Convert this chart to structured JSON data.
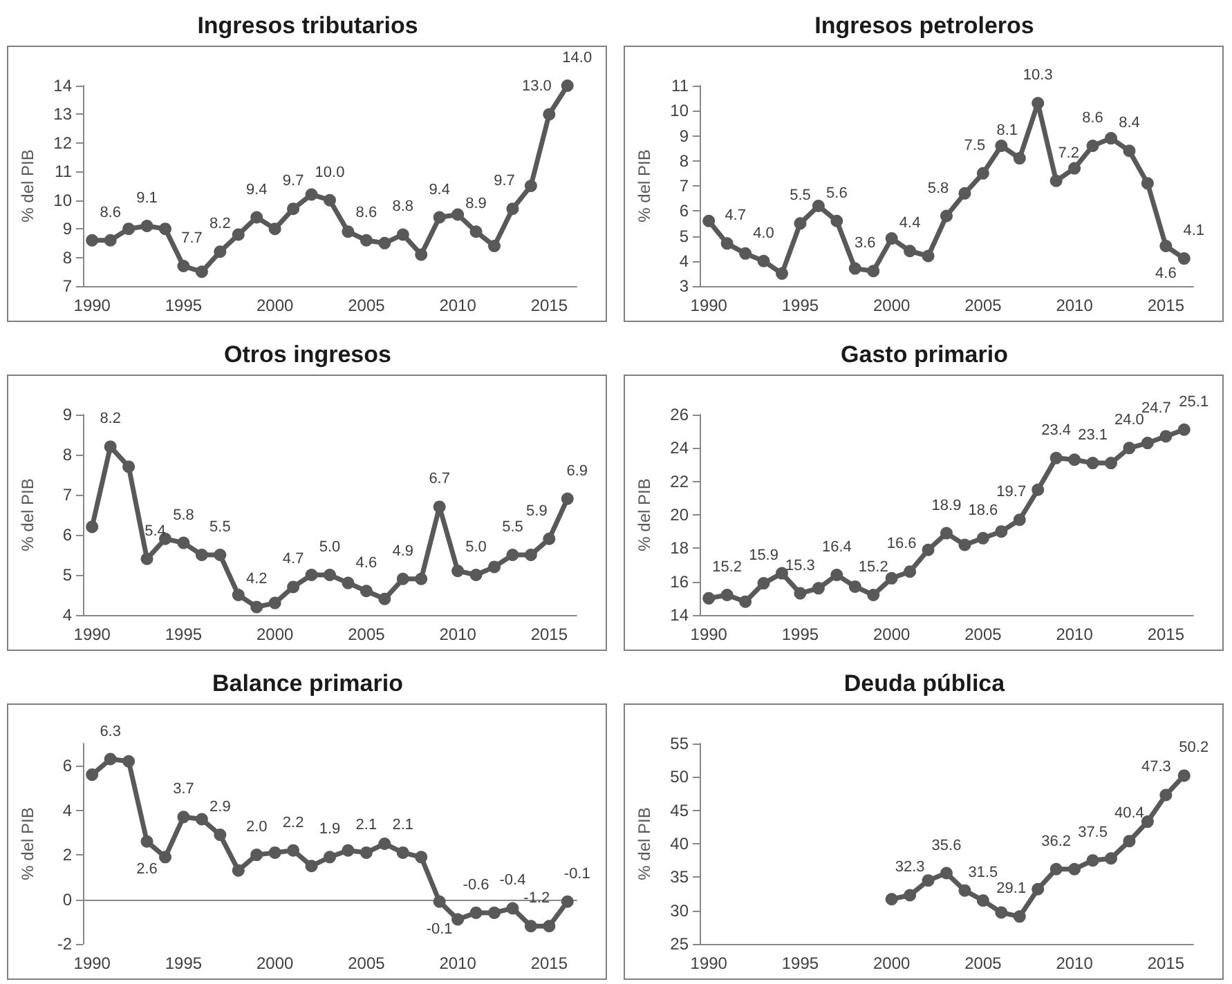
{
  "chart_data": [
    {
      "type": "line",
      "title": "Ingresos tributarios",
      "ylabel": "% del PIB",
      "categories": [
        "1990",
        null,
        null,
        null,
        null,
        "1995",
        null,
        null,
        null,
        null,
        "2000",
        null,
        null,
        null,
        null,
        "2005",
        null,
        null,
        null,
        null,
        "2010",
        null,
        null,
        null,
        null,
        "2015",
        null
      ],
      "series": [
        {
          "color": "#595959",
          "values": [
            8.6,
            8.6,
            9.0,
            9.1,
            9.0,
            7.7,
            7.5,
            8.2,
            8.8,
            9.4,
            9.0,
            9.7,
            10.2,
            10.0,
            8.9,
            8.6,
            8.5,
            8.8,
            8.1,
            9.4,
            9.5,
            8.9,
            8.4,
            9.7,
            10.5,
            13.0,
            14.0
          ],
          "value_labels": [
            null,
            "8.6",
            null,
            "9.1",
            null,
            "7.7",
            null,
            "8.2",
            null,
            "9.4",
            null,
            "9.7",
            null,
            "10.0",
            null,
            "8.6",
            null,
            "8.8",
            null,
            "9.4",
            null,
            "8.9",
            null,
            "9.7",
            null,
            "13.0",
            "14.0"
          ]
        }
      ],
      "ylim": [
        7,
        14
      ],
      "yticks": [
        7,
        8,
        9,
        10,
        11,
        12,
        13,
        14
      ],
      "marker": "circle",
      "line_style": "solid"
    },
    {
      "type": "line",
      "title": "Ingresos petroleros",
      "ylabel": "% del PIB",
      "categories": [
        "1990",
        null,
        null,
        null,
        null,
        "1995",
        null,
        null,
        null,
        null,
        "2000",
        null,
        null,
        null,
        null,
        "2005",
        null,
        null,
        null,
        null,
        "2010",
        null,
        null,
        null,
        null,
        "2015",
        null
      ],
      "series": [
        {
          "color": "#595959",
          "values": [
            5.6,
            4.7,
            4.3,
            4.0,
            3.5,
            5.5,
            6.2,
            5.6,
            3.7,
            3.6,
            4.9,
            4.4,
            4.2,
            5.8,
            6.7,
            7.5,
            8.6,
            8.1,
            10.3,
            7.2,
            7.7,
            8.6,
            8.9,
            8.4,
            7.1,
            4.6,
            4.1
          ],
          "value_labels": [
            null,
            "4.7",
            null,
            "4.0",
            null,
            "5.5",
            null,
            "5.6",
            null,
            "3.6",
            null,
            "4.4",
            null,
            "5.8",
            null,
            "7.5",
            null,
            "8.1",
            "10.3",
            "7.2",
            null,
            "8.6",
            null,
            "8.4",
            null,
            "4.6",
            "4.1"
          ]
        }
      ],
      "ylim": [
        3,
        11
      ],
      "yticks": [
        3,
        4,
        5,
        6,
        7,
        8,
        9,
        10,
        11
      ],
      "marker": "circle",
      "line_style": "solid"
    },
    {
      "type": "line",
      "title": "Otros ingresos",
      "ylabel": "% del PIB",
      "categories": [
        "1990",
        null,
        null,
        null,
        null,
        "1995",
        null,
        null,
        null,
        null,
        "2000",
        null,
        null,
        null,
        null,
        "2005",
        null,
        null,
        null,
        null,
        "2010",
        null,
        null,
        null,
        null,
        "2015",
        null
      ],
      "series": [
        {
          "color": "#595959",
          "values": [
            6.2,
            8.2,
            7.7,
            5.4,
            5.9,
            5.8,
            5.5,
            5.5,
            4.5,
            4.2,
            4.3,
            4.7,
            5.0,
            5.0,
            4.8,
            4.6,
            4.4,
            4.9,
            4.9,
            6.7,
            5.1,
            5.0,
            5.2,
            5.5,
            5.5,
            5.9,
            6.9
          ],
          "value_labels": [
            null,
            "8.2",
            null,
            "5.4",
            null,
            "5.8",
            null,
            "5.5",
            null,
            "4.2",
            null,
            "4.7",
            null,
            "5.0",
            null,
            "4.6",
            null,
            "4.9",
            null,
            "6.7",
            null,
            "5.0",
            null,
            "5.5",
            null,
            "5.9",
            "6.9"
          ]
        }
      ],
      "ylim": [
        4,
        9
      ],
      "yticks": [
        4,
        5,
        6,
        7,
        8,
        9
      ],
      "marker": "circle",
      "line_style": "solid"
    },
    {
      "type": "line",
      "title": "Gasto primario",
      "ylabel": "% del PIB",
      "categories": [
        "1990",
        null,
        null,
        null,
        null,
        "1995",
        null,
        null,
        null,
        null,
        "2000",
        null,
        null,
        null,
        null,
        "2005",
        null,
        null,
        null,
        null,
        "2010",
        null,
        null,
        null,
        null,
        "2015",
        null
      ],
      "series": [
        {
          "color": "#595959",
          "values": [
            15.0,
            15.2,
            14.8,
            15.9,
            16.5,
            15.3,
            15.6,
            16.4,
            15.7,
            15.2,
            16.2,
            16.6,
            17.9,
            18.9,
            18.2,
            18.6,
            19.0,
            19.7,
            21.5,
            23.4,
            23.3,
            23.1,
            23.1,
            24.0,
            24.3,
            24.7,
            25.1
          ],
          "value_labels": [
            null,
            "15.2",
            null,
            "15.9",
            null,
            "15.3",
            null,
            "16.4",
            null,
            "15.2",
            null,
            "16.6",
            null,
            "18.9",
            null,
            "18.6",
            null,
            "19.7",
            null,
            "23.4",
            null,
            "23.1",
            null,
            "24.0",
            null,
            "24.7",
            "25.1"
          ]
        }
      ],
      "ylim": [
        14,
        26
      ],
      "yticks": [
        14,
        16,
        18,
        20,
        22,
        24,
        26
      ],
      "marker": "circle",
      "line_style": "solid"
    },
    {
      "type": "line",
      "title": "Balance primario",
      "ylabel": "% del PIB",
      "categories": [
        "1990",
        null,
        null,
        null,
        null,
        "1995",
        null,
        null,
        null,
        null,
        "2000",
        null,
        null,
        null,
        null,
        "2005",
        null,
        null,
        null,
        null,
        "2010",
        null,
        null,
        null,
        null,
        "2015",
        null
      ],
      "series": [
        {
          "color": "#595959",
          "values": [
            5.6,
            6.3,
            6.2,
            2.6,
            1.9,
            3.7,
            3.6,
            2.9,
            1.3,
            2.0,
            2.1,
            2.2,
            1.5,
            1.9,
            2.2,
            2.1,
            2.5,
            2.1,
            1.9,
            -0.1,
            -0.9,
            -0.6,
            -0.6,
            -0.4,
            -1.2,
            -1.2,
            -0.1
          ],
          "value_labels": [
            null,
            "6.3",
            null,
            "2.6",
            null,
            "3.7",
            null,
            "2.9",
            null,
            "2.0",
            null,
            "2.2",
            null,
            "1.9",
            null,
            "2.1",
            null,
            "2.1",
            null,
            "-0.1",
            null,
            "-0.6",
            null,
            "-0.4",
            null,
            "-1.2",
            "-0.1"
          ]
        }
      ],
      "ylim": [
        -2,
        7
      ],
      "yticks": [
        -2,
        0,
        2,
        4,
        6
      ],
      "marker": "circle",
      "line_style": "solid"
    },
    {
      "type": "line",
      "title": "Deuda pública",
      "ylabel": "% del PIB",
      "categories": [
        "1990",
        null,
        null,
        null,
        null,
        "1995",
        null,
        null,
        null,
        null,
        "2000",
        null,
        null,
        null,
        null,
        "2005",
        null,
        null,
        null,
        null,
        "2010",
        null,
        null,
        null,
        null,
        "2015",
        null
      ],
      "series": [
        {
          "color": "#595959",
          "values": [
            null,
            null,
            null,
            null,
            null,
            null,
            null,
            null,
            null,
            null,
            31.7,
            32.3,
            34.5,
            35.6,
            33.0,
            31.5,
            29.7,
            29.1,
            33.2,
            36.2,
            36.2,
            37.5,
            37.8,
            40.4,
            43.3,
            47.3,
            50.2
          ],
          "value_labels": [
            null,
            null,
            null,
            null,
            null,
            null,
            null,
            null,
            null,
            null,
            null,
            "32.3",
            null,
            "35.6",
            null,
            "31.5",
            null,
            "29.1",
            null,
            "36.2",
            null,
            "37.5",
            null,
            "40.4",
            null,
            "47.3",
            "50.2"
          ]
        }
      ],
      "ylim": [
        25,
        55
      ],
      "yticks": [
        25,
        30,
        35,
        40,
        45,
        50,
        55
      ],
      "marker": "circle",
      "line_style": "solid"
    }
  ]
}
